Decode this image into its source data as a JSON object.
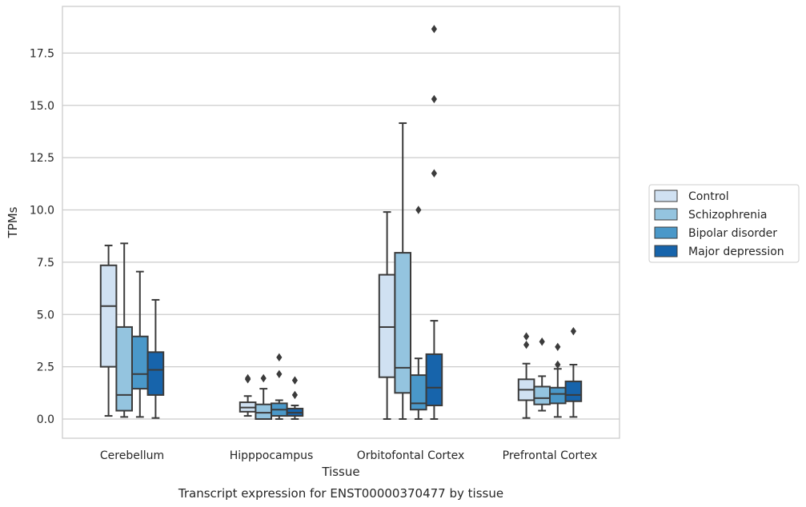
{
  "chart_data": {
    "type": "box",
    "caption": "Transcript expression for ENST00000370477 by tissue",
    "xlabel": "Tissue",
    "ylabel": "TPMs",
    "ylim": [
      -0.9,
      19.7
    ],
    "yticks": [
      "0.0",
      "2.5",
      "5.0",
      "7.5",
      "10.0",
      "12.5",
      "15.0",
      "17.5"
    ],
    "ytick_values": [
      0,
      2.5,
      5,
      7.5,
      10,
      12.5,
      15,
      17.5
    ],
    "grid": "horizontal",
    "legend_position": "right",
    "categories": [
      "Cerebellum",
      "Hipppocampus",
      "Orbitofontal Cortex",
      "Prefrontal Cortex"
    ],
    "series": [
      {
        "name": "Control",
        "color": "#d0e1f2",
        "boxes": [
          {
            "whislo": 0.15,
            "q1": 2.5,
            "med": 5.4,
            "q3": 7.35,
            "whishi": 8.3,
            "fliers": []
          },
          {
            "whislo": 0.15,
            "q1": 0.35,
            "med": 0.55,
            "q3": 0.8,
            "whishi": 1.1,
            "fliers": [
              1.9,
              1.95
            ]
          },
          {
            "whislo": 0.0,
            "q1": 2.0,
            "med": 4.4,
            "q3": 6.9,
            "whishi": 9.9,
            "fliers": []
          },
          {
            "whislo": 0.05,
            "q1": 0.9,
            "med": 1.4,
            "q3": 1.9,
            "whishi": 2.65,
            "fliers": [
              3.55,
              3.95
            ]
          }
        ]
      },
      {
        "name": "Schizophrenia",
        "color": "#94c4df",
        "boxes": [
          {
            "whislo": 0.1,
            "q1": 0.4,
            "med": 1.15,
            "q3": 4.4,
            "whishi": 8.4,
            "fliers": []
          },
          {
            "whislo": 0.0,
            "q1": 0.0,
            "med": 0.3,
            "q3": 0.7,
            "whishi": 1.45,
            "fliers": [
              1.95
            ]
          },
          {
            "whislo": 0.0,
            "q1": 1.25,
            "med": 2.45,
            "q3": 7.95,
            "whishi": 14.15,
            "fliers": []
          },
          {
            "whislo": 0.4,
            "q1": 0.7,
            "med": 1.0,
            "q3": 1.55,
            "whishi": 2.05,
            "fliers": [
              3.7
            ]
          }
        ]
      },
      {
        "name": "Bipolar disorder",
        "color": "#4a98c9",
        "boxes": [
          {
            "whislo": 0.1,
            "q1": 1.45,
            "med": 2.15,
            "q3": 3.95,
            "whishi": 7.05,
            "fliers": []
          },
          {
            "whislo": 0.0,
            "q1": 0.15,
            "med": 0.45,
            "q3": 0.75,
            "whishi": 0.9,
            "fliers": [
              2.15,
              2.95
            ]
          },
          {
            "whislo": 0.0,
            "q1": 0.45,
            "med": 0.75,
            "q3": 2.1,
            "whishi": 2.9,
            "fliers": [
              10.0
            ]
          },
          {
            "whislo": 0.1,
            "q1": 0.75,
            "med": 1.2,
            "q3": 1.5,
            "whishi": 2.4,
            "fliers": [
              2.6,
              3.45
            ]
          }
        ]
      },
      {
        "name": "Major depression",
        "color": "#1764ab",
        "boxes": [
          {
            "whislo": 0.05,
            "q1": 1.15,
            "med": 2.35,
            "q3": 3.2,
            "whishi": 5.7,
            "fliers": []
          },
          {
            "whislo": 0.0,
            "q1": 0.15,
            "med": 0.3,
            "q3": 0.5,
            "whishi": 0.65,
            "fliers": [
              1.15,
              1.85
            ]
          },
          {
            "whislo": 0.0,
            "q1": 0.65,
            "med": 1.5,
            "q3": 3.1,
            "whishi": 4.7,
            "fliers": [
              11.75,
              15.3,
              18.65
            ]
          },
          {
            "whislo": 0.1,
            "q1": 0.85,
            "med": 1.15,
            "q3": 1.8,
            "whishi": 2.6,
            "fliers": [
              4.2
            ]
          }
        ]
      }
    ]
  }
}
